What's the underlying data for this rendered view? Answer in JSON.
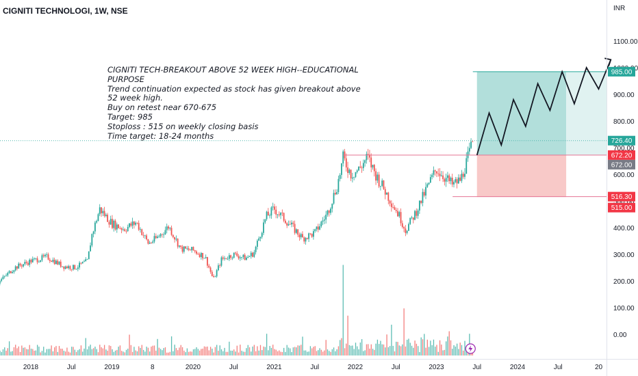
{
  "header": {
    "title": "CIGNITI TECHNOLOGI, 1W, NSE",
    "currency": "INR"
  },
  "annotation": {
    "lines": [
      "CIGNITI TECH-BREAKOUT ABOVE 52 WEEK HIGH--EDUCATIONAL PURPOSE",
      "Trend continuation expected as stock has given breakout above 52 week high.",
      "Buy on retest near 670-675",
      "Target: 985",
      "Stoploss : 515 on weekly closing basis",
      "Time target: 18-24 months"
    ]
  },
  "colors": {
    "up": "#26a69a",
    "down": "#ef5350",
    "target_zone": "#b2dfdb",
    "target_zone_light": "#e0f2f1",
    "stop_zone": "#f8c9c8",
    "resistance_line": "#e57393",
    "price_line": "#4db6ac",
    "path": "#131722",
    "badge_target": "#26a69a",
    "badge_red": "#f23645",
    "badge_gray": "#787b86"
  },
  "chart_data": {
    "type": "candlestick",
    "interval": "1W",
    "x_tick_labels": [
      "2018",
      "Jul",
      "2019",
      "8",
      "2020",
      "Jul",
      "2021",
      "Jul",
      "2022",
      "Jul",
      "2023",
      "Jul",
      "2024",
      "Jul",
      "20"
    ],
    "y_tick_labels": [
      "0.00",
      "100.00",
      "200.00",
      "300.00",
      "400.00",
      "500.00",
      "600.00",
      "700.00",
      "800.00",
      "900.00",
      "1000.00",
      "1100.00"
    ],
    "ylim": [
      -50,
      1200
    ],
    "price_path": [
      [
        2017.6,
        195
      ],
      [
        2017.8,
        250
      ],
      [
        2018.0,
        275
      ],
      [
        2018.2,
        290
      ],
      [
        2018.4,
        255
      ],
      [
        2018.55,
        250
      ],
      [
        2018.7,
        275
      ],
      [
        2018.75,
        370
      ],
      [
        2018.85,
        470
      ],
      [
        2019.0,
        415
      ],
      [
        2019.15,
        395
      ],
      [
        2019.3,
        420
      ],
      [
        2019.45,
        340
      ],
      [
        2019.55,
        360
      ],
      [
        2019.7,
        405
      ],
      [
        2019.85,
        320
      ],
      [
        2020.0,
        315
      ],
      [
        2020.15,
        290
      ],
      [
        2020.25,
        205
      ],
      [
        2020.35,
        280
      ],
      [
        2020.5,
        300
      ],
      [
        2020.65,
        285
      ],
      [
        2020.75,
        305
      ],
      [
        2020.9,
        440
      ],
      [
        2021.0,
        470
      ],
      [
        2021.1,
        440
      ],
      [
        2021.2,
        410
      ],
      [
        2021.35,
        360
      ],
      [
        2021.5,
        380
      ],
      [
        2021.65,
        450
      ],
      [
        2021.78,
        560
      ],
      [
        2021.85,
        660
      ],
      [
        2021.95,
        600
      ],
      [
        2022.05,
        620
      ],
      [
        2022.15,
        665
      ],
      [
        2022.25,
        600
      ],
      [
        2022.4,
        520
      ],
      [
        2022.55,
        440
      ],
      [
        2022.62,
        390
      ],
      [
        2022.75,
        460
      ],
      [
        2022.9,
        560
      ],
      [
        2023.0,
        620
      ],
      [
        2023.1,
        590
      ],
      [
        2023.2,
        560
      ],
      [
        2023.3,
        580
      ],
      [
        2023.4,
        672
      ],
      [
        2023.45,
        726.4
      ]
    ],
    "volume": [
      {
        "x": 2021.85,
        "v": 250
      },
      {
        "x": 2021.9,
        "v": 110
      },
      {
        "x": 2022.6,
        "v": 130
      },
      {
        "x": 2022.45,
        "v": 85
      },
      {
        "x": 2023.4,
        "v": 60
      },
      {
        "x": 2020.9,
        "v": 60
      }
    ],
    "levels": {
      "last_price": 726.4,
      "resistance": 672.2,
      "entry": 672.0,
      "target": 985.0,
      "stoploss_level": 516.3,
      "stoploss": 515.0
    },
    "projection_path": [
      [
        2023.5,
        672
      ],
      [
        2023.65,
        830
      ],
      [
        2023.8,
        710
      ],
      [
        2023.95,
        880
      ],
      [
        2024.1,
        780
      ],
      [
        2024.25,
        940
      ],
      [
        2024.4,
        840
      ],
      [
        2024.55,
        985
      ],
      [
        2024.7,
        865
      ],
      [
        2024.85,
        1000
      ],
      [
        2025.0,
        920
      ],
      [
        2025.15,
        1030
      ]
    ],
    "price_labels": [
      "985.00",
      "726.40",
      "672.20",
      "672.00",
      "516.30",
      "515.00"
    ]
  }
}
